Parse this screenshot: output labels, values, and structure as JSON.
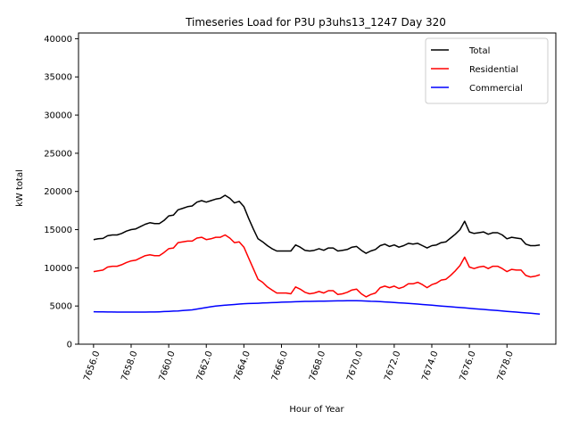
{
  "chart_data": {
    "type": "line",
    "title": "Timeseries Load for P3U p3uhs13_1247  Day 320",
    "xlabel": "Hour of Year",
    "ylabel": "kW total",
    "xlim": [
      7655.2,
      7680.6
    ],
    "ylim": [
      0,
      40750
    ],
    "xticks": [
      7656,
      7658,
      7660,
      7662,
      7664,
      7666,
      7668,
      7670,
      7672,
      7674,
      7676,
      7678
    ],
    "xtick_labels": [
      "7656.0",
      "7658.0",
      "7660.0",
      "7662.0",
      "7664.0",
      "7666.0",
      "7668.0",
      "7670.0",
      "7672.0",
      "7674.0",
      "7676.0",
      "7678.0"
    ],
    "yticks": [
      0,
      5000,
      10000,
      15000,
      20000,
      25000,
      30000,
      35000,
      40000
    ],
    "ytick_labels": [
      "0",
      "5000",
      "10000",
      "15000",
      "20000",
      "25000",
      "30000",
      "35000",
      "40000"
    ],
    "legend_position": "top-right",
    "x": [
      7656.0,
      7656.25,
      7656.5,
      7656.75,
      7657.0,
      7657.25,
      7657.5,
      7657.75,
      7658.0,
      7658.25,
      7658.5,
      7658.75,
      7659.0,
      7659.25,
      7659.5,
      7659.75,
      7660.0,
      7660.25,
      7660.5,
      7660.75,
      7661.0,
      7661.25,
      7661.5,
      7661.75,
      7662.0,
      7662.25,
      7662.5,
      7662.75,
      7663.0,
      7663.25,
      7663.5,
      7663.75,
      7664.0,
      7664.25,
      7664.5,
      7664.75,
      7665.0,
      7665.25,
      7665.5,
      7665.75,
      7666.0,
      7666.25,
      7666.5,
      7666.75,
      7667.0,
      7667.25,
      7667.5,
      7667.75,
      7668.0,
      7668.25,
      7668.5,
      7668.75,
      7669.0,
      7669.25,
      7669.5,
      7669.75,
      7670.0,
      7670.25,
      7670.5,
      7670.75,
      7671.0,
      7671.25,
      7671.5,
      7671.75,
      7672.0,
      7672.25,
      7672.5,
      7672.75,
      7673.0,
      7673.25,
      7673.5,
      7673.75,
      7674.0,
      7674.25,
      7674.5,
      7674.75,
      7675.0,
      7675.25,
      7675.5,
      7675.75,
      7676.0,
      7676.25,
      7676.5,
      7676.75,
      7677.0,
      7677.25,
      7677.5,
      7677.75,
      7678.0,
      7678.25,
      7678.5,
      7678.75,
      7679.0,
      7679.25,
      7679.5,
      7679.75
    ],
    "series": [
      {
        "name": "Total",
        "color": "#000000",
        "values": [
          13700,
          13800,
          13850,
          14200,
          14300,
          14300,
          14500,
          14800,
          15000,
          15100,
          15400,
          15700,
          15900,
          15800,
          15800,
          16200,
          16800,
          16900,
          17600,
          17800,
          18000,
          18100,
          18600,
          18800,
          18600,
          18800,
          19000,
          19100,
          19500,
          19100,
          18500,
          18700,
          18000,
          16500,
          15100,
          13800,
          13400,
          12900,
          12500,
          12200,
          12200,
          12200,
          12200,
          13000,
          12700,
          12300,
          12200,
          12300,
          12500,
          12300,
          12600,
          12600,
          12200,
          12300,
          12400,
          12700,
          12800,
          12300,
          11900,
          12200,
          12400,
          12900,
          13100,
          12800,
          13000,
          12700,
          12900,
          13200,
          13100,
          13200,
          12900,
          12600,
          12900,
          13000,
          13300,
          13400,
          13900,
          14400,
          15000,
          16100,
          14700,
          14500,
          14600,
          14700,
          14400,
          14600,
          14600,
          14300,
          13800,
          14000,
          13900,
          13800,
          13100,
          12900,
          12900,
          13000
        ]
      },
      {
        "name": "Residential",
        "color": "#ff0000",
        "values": [
          9500,
          9600,
          9700,
          10100,
          10200,
          10200,
          10400,
          10700,
          10900,
          11000,
          11300,
          11600,
          11700,
          11600,
          11600,
          12000,
          12500,
          12600,
          13300,
          13400,
          13500,
          13500,
          13900,
          14000,
          13700,
          13800,
          14000,
          14000,
          14300,
          13900,
          13300,
          13400,
          12700,
          11300,
          9900,
          8500,
          8100,
          7500,
          7100,
          6700,
          6700,
          6700,
          6600,
          7500,
          7200,
          6800,
          6600,
          6700,
          6900,
          6700,
          7000,
          7000,
          6500,
          6600,
          6800,
          7100,
          7200,
          6600,
          6200,
          6500,
          6700,
          7400,
          7600,
          7400,
          7600,
          7300,
          7500,
          7900,
          7900,
          8100,
          7800,
          7400,
          7800,
          8000,
          8400,
          8500,
          9000,
          9600,
          10300,
          11400,
          10100,
          9900,
          10100,
          10200,
          9900,
          10200,
          10200,
          9900,
          9500,
          9800,
          9700,
          9700,
          9000,
          8800,
          8900,
          9100
        ]
      },
      {
        "name": "Commercial",
        "color": "#0000ff",
        "values": [
          4250,
          4240,
          4230,
          4220,
          4210,
          4200,
          4200,
          4200,
          4200,
          4200,
          4200,
          4200,
          4210,
          4220,
          4240,
          4270,
          4300,
          4330,
          4360,
          4400,
          4450,
          4500,
          4600,
          4700,
          4800,
          4900,
          5000,
          5050,
          5100,
          5150,
          5200,
          5250,
          5300,
          5320,
          5340,
          5360,
          5400,
          5420,
          5440,
          5460,
          5500,
          5520,
          5540,
          5560,
          5580,
          5600,
          5610,
          5620,
          5630,
          5640,
          5650,
          5660,
          5670,
          5680,
          5690,
          5700,
          5700,
          5680,
          5650,
          5620,
          5600,
          5570,
          5540,
          5500,
          5460,
          5420,
          5380,
          5340,
          5300,
          5250,
          5200,
          5150,
          5100,
          5050,
          5000,
          4950,
          4900,
          4850,
          4800,
          4750,
          4700,
          4650,
          4600,
          4550,
          4500,
          4450,
          4400,
          4350,
          4300,
          4250,
          4200,
          4150,
          4100,
          4050,
          4000,
          3950
        ]
      }
    ]
  }
}
